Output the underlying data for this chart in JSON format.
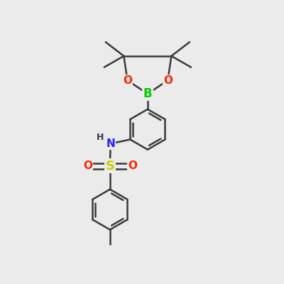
{
  "background_color": "#ebebeb",
  "bond_color": "#3a3a3a",
  "bond_width": 1.8,
  "atom_colors": {
    "B": "#00cc00",
    "O": "#ff2200",
    "N": "#2222ff",
    "S": "#cccc00",
    "H": "#3a3a3a",
    "C": "#3a3a3a"
  },
  "figsize": [
    4.0,
    4.0
  ],
  "dpi": 100
}
